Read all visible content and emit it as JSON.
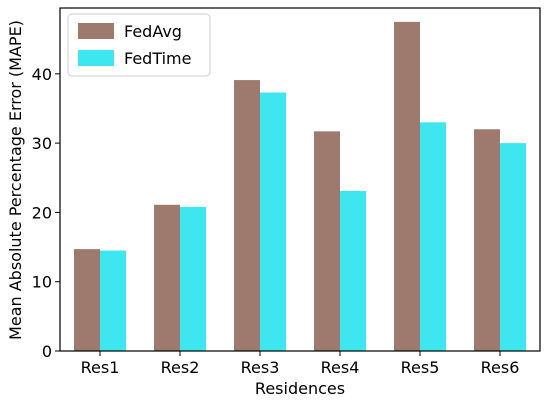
{
  "chart_data": {
    "type": "bar",
    "title": "",
    "xlabel": "Residences",
    "ylabel": "Mean Absolute Percentage Error (MAPE)",
    "categories": [
      "Res1",
      "Res2",
      "Res3",
      "Res4",
      "Res5",
      "Res6"
    ],
    "ylim": [
      0,
      49.5
    ],
    "yticks": [
      0,
      10,
      20,
      30,
      40
    ],
    "grid": false,
    "legend_position": "top-left",
    "series": [
      {
        "name": "FedAvg",
        "color": "#9e7a6e",
        "values": [
          14.7,
          21.1,
          39.1,
          31.7,
          47.5,
          32.0
        ]
      },
      {
        "name": "FedTime",
        "color": "#3ee6f0",
        "values": [
          14.5,
          20.8,
          37.3,
          23.1,
          33.0,
          30.0
        ]
      }
    ]
  }
}
